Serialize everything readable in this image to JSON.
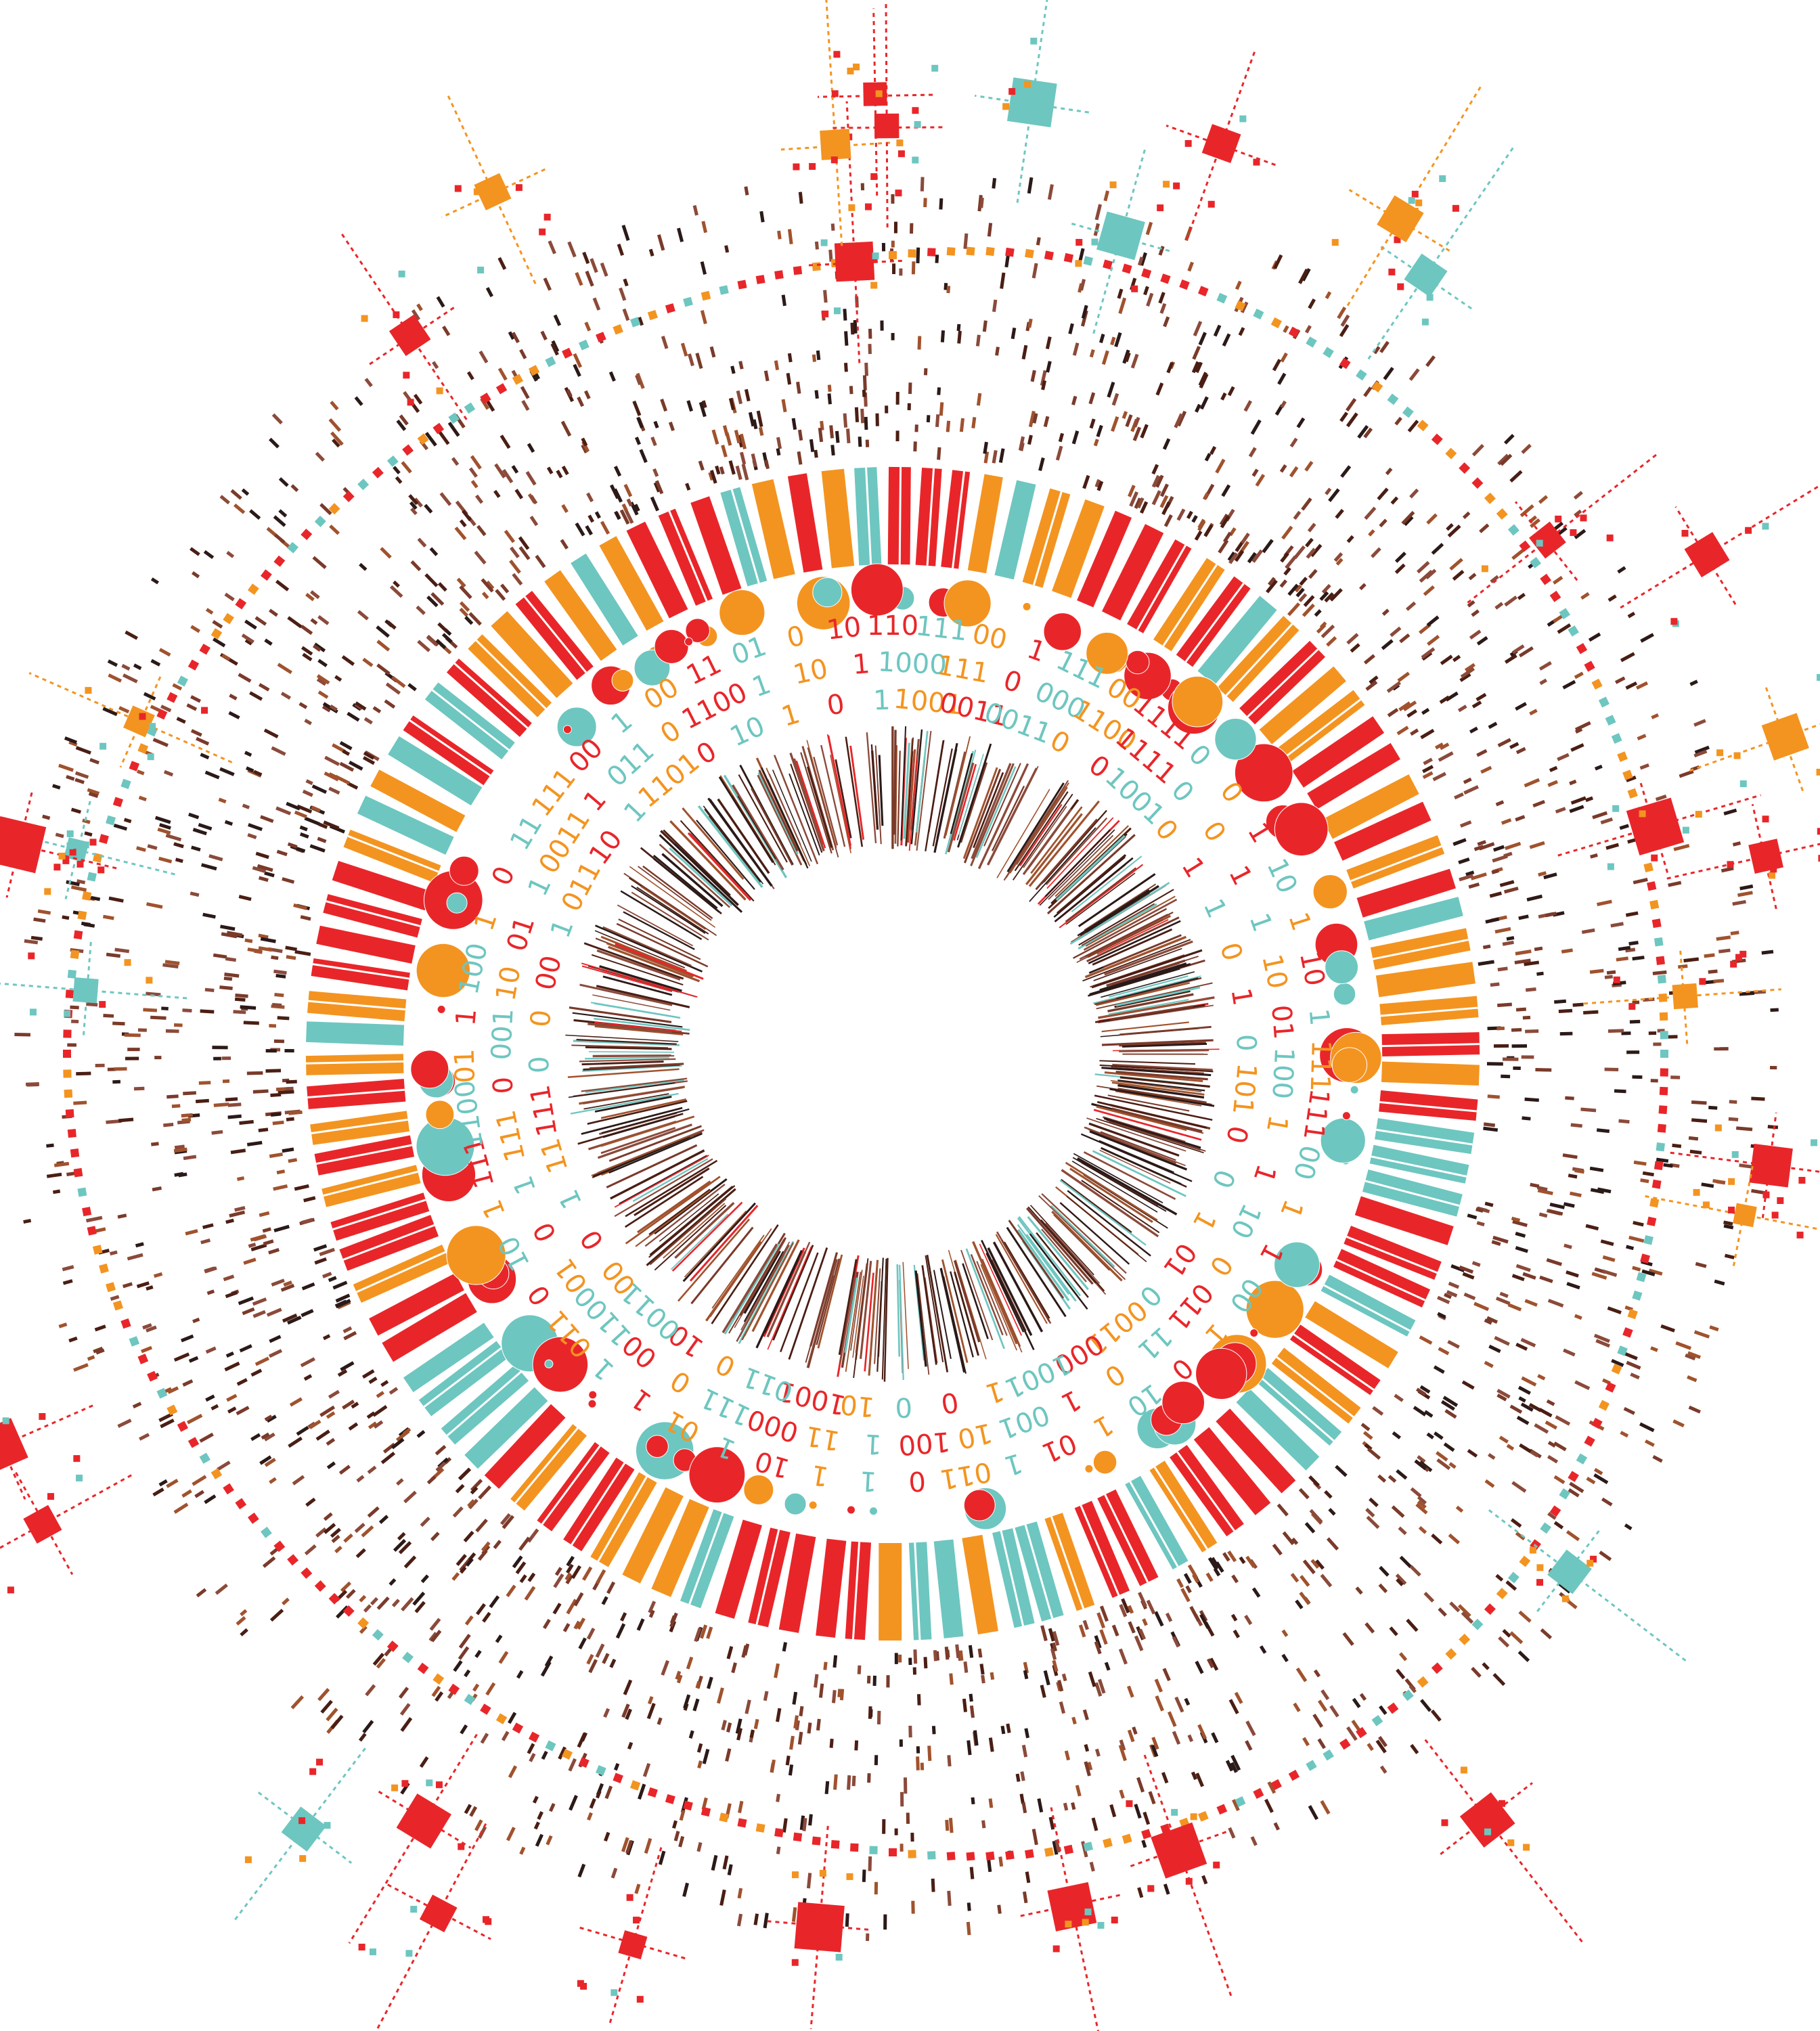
{
  "binary_rings": [
    {
      "groups": [
        "110",
        "111",
        "00",
        "1",
        "111",
        "00",
        "1111",
        "0",
        "0",
        "1",
        "10",
        "1",
        "10",
        "1",
        "111",
        "111",
        "00",
        "1",
        "1",
        "00",
        "1",
        "0",
        "10",
        "1",
        "01",
        "1",
        "011",
        "0",
        "1",
        "1",
        "10",
        "1",
        "01",
        "1",
        "1",
        "011",
        "0",
        "10",
        "1",
        "111",
        "1100",
        "01",
        "1",
        "100",
        "1",
        "0",
        "11",
        "111",
        "00",
        "1",
        "00",
        "11",
        "01",
        "0",
        "10"
      ]
    },
    {
      "groups": [
        "1000",
        "111",
        "0",
        "000",
        "1100",
        "1111",
        "0",
        "0",
        "1",
        "1",
        "10",
        "01",
        "100",
        "1",
        "1",
        "10",
        "0",
        "011",
        "11",
        "0",
        "1",
        "001",
        "10",
        "100",
        "1",
        "11",
        "000",
        "111",
        "0",
        "00",
        "1100",
        "01",
        "0",
        "1",
        "111",
        "0",
        "001",
        "10",
        "01",
        "1",
        "0011",
        "1",
        "011",
        "0",
        "1100",
        "1",
        "10",
        "1"
      ]
    },
    {
      "groups": [
        "1001",
        "0011",
        "0011",
        "0",
        "0",
        "1001",
        "0",
        "1",
        "1",
        "0",
        "1",
        "0",
        "101",
        "0",
        "0",
        "1",
        "01",
        "0",
        "0011",
        "000",
        "1001",
        "1",
        "0",
        "0",
        "10",
        "1001",
        "011",
        "0",
        "10",
        "0011",
        "00",
        "0",
        "1",
        "11",
        "111",
        "0",
        "0",
        "00",
        "1",
        "011",
        "10",
        "1",
        "1101",
        "0",
        "10",
        "1",
        "0",
        "1"
      ]
    }
  ]
}
